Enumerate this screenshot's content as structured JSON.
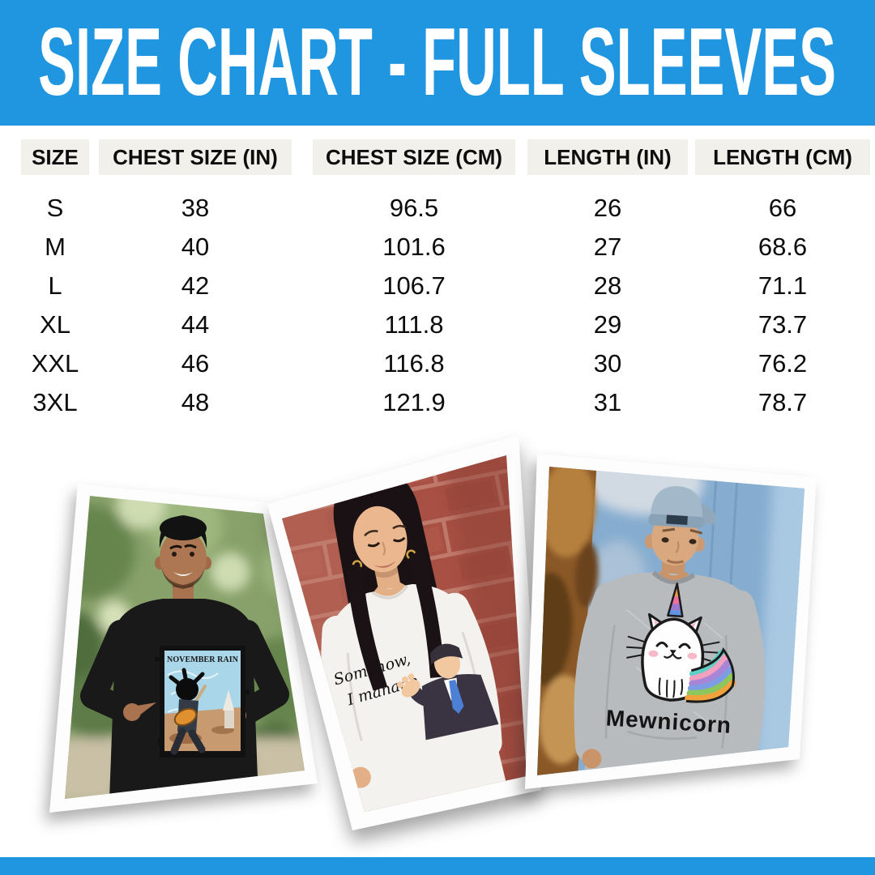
{
  "banner": {
    "title": "SIZE CHART - FULL SLEEVES"
  },
  "colors": {
    "accent_blue": "#2095e0",
    "header_cell_bg": "#f1f0ea",
    "table_text": "#0b0b0b"
  },
  "table": {
    "columns": [
      "SIZE",
      "CHEST SIZE (IN)",
      "CHEST SIZE (CM)",
      "LENGTH (IN)",
      "LENGTH (CM)"
    ],
    "rows": [
      [
        "S",
        "38",
        "96.5",
        "26",
        "66"
      ],
      [
        "M",
        "40",
        "101.6",
        "27",
        "68.6"
      ],
      [
        "L",
        "42",
        "106.7",
        "28",
        "71.1"
      ],
      [
        "XL",
        "44",
        "111.8",
        "29",
        "73.7"
      ],
      [
        "XXL",
        "46",
        "116.8",
        "30",
        "76.2"
      ],
      [
        "3XL",
        "48",
        "121.9",
        "31",
        "78.7"
      ]
    ]
  },
  "photos": {
    "left": {
      "alt": "Man outdoors pointing at his black full-sleeve t-shirt with November Rain guitarist graphic",
      "graphic_title": "NOVEMBER RAIN"
    },
    "middle": {
      "alt": "Woman by a red brick wall in a white full-sleeve t-shirt with Somehow, I manage office print",
      "graphic_line1": "Somehow,",
      "graphic_line2": "I manage"
    },
    "right": {
      "alt": "Man in backwards cap wearing a grey full-sleeve t-shirt with Mewnicorn cat-unicorn graphic",
      "graphic_title": "Mewnicorn"
    }
  }
}
